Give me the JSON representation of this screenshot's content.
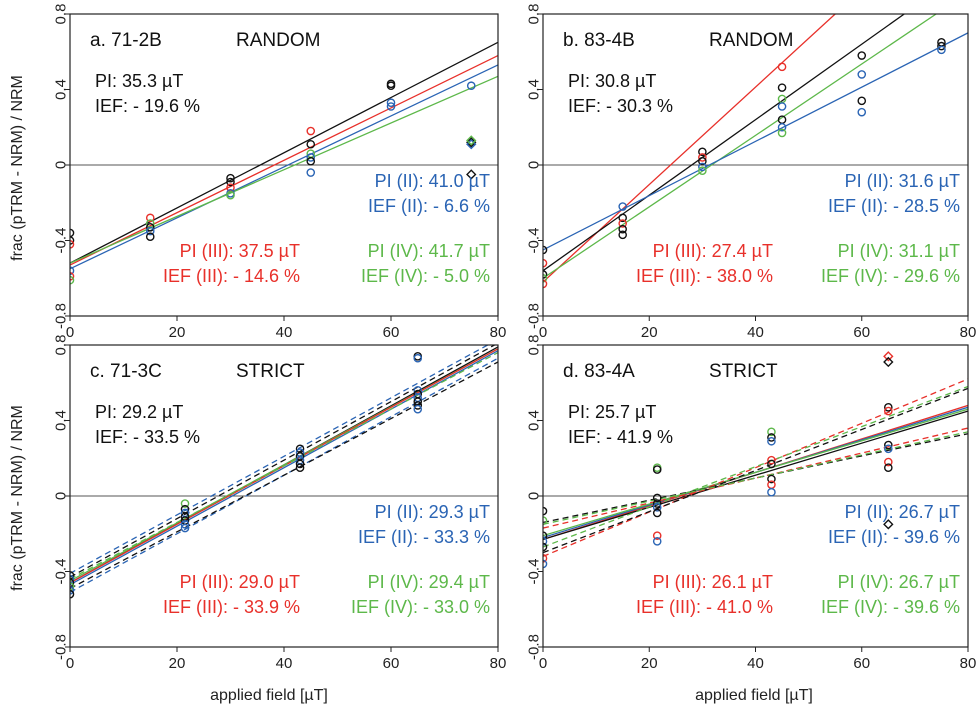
{
  "colors": {
    "black": "#111111",
    "red": "#e8302a",
    "blue": "#2a64b4",
    "green": "#5db84a",
    "zero": "#555555"
  },
  "axes": {
    "xlabel": "applied field [µT]",
    "ylabel": "frac (pTRM - NRM) / NRM",
    "xticks": [
      "0",
      "20",
      "40",
      "60",
      "80"
    ],
    "yticks": [
      "-0.8",
      "-0.4",
      "0",
      "0.4",
      "0.8"
    ]
  },
  "chart_data": [
    {
      "type": "scatter",
      "id": "a",
      "name": "a. 71-2B",
      "method": "RANDOM",
      "xlim": [
        0,
        80
      ],
      "ylim": [
        -0.8,
        0.8
      ],
      "texts": {
        "pi": "PI: 35.3 µT",
        "ief": "IEF: - 19.6 %",
        "pi2": "PI (II): 41.0 µT",
        "ief2": "IEF (II): - 6.6 %",
        "pi3": "PI (III): 37.5 µT",
        "ief3": "IEF (III): - 14.6 %",
        "pi4": "PI (IV): 41.7 µT",
        "ief4": "IEF (IV): - 5.0 %"
      },
      "lines": [
        {
          "color": "black",
          "x": [
            0,
            80
          ],
          "y": [
            -0.52,
            0.65
          ]
        },
        {
          "color": "red",
          "x": [
            0,
            80
          ],
          "y": [
            -0.53,
            0.58
          ]
        },
        {
          "color": "blue",
          "x": [
            0,
            80
          ],
          "y": [
            -0.55,
            0.53
          ]
        },
        {
          "color": "green",
          "x": [
            0,
            80
          ],
          "y": [
            -0.52,
            0.47
          ]
        }
      ],
      "points": [
        {
          "x": 0,
          "y": -0.36,
          "c": "black"
        },
        {
          "x": 0,
          "y": -0.4,
          "c": "black"
        },
        {
          "x": 0,
          "y": -0.56,
          "c": "blue"
        },
        {
          "x": 0,
          "y": -0.59,
          "c": "red"
        },
        {
          "x": 0,
          "y": -0.61,
          "c": "green"
        },
        {
          "x": 0,
          "y": -0.42,
          "c": "red"
        },
        {
          "x": 15,
          "y": -0.28,
          "c": "red"
        },
        {
          "x": 15,
          "y": -0.31,
          "c": "green"
        },
        {
          "x": 15,
          "y": -0.33,
          "c": "black"
        },
        {
          "x": 15,
          "y": -0.35,
          "c": "blue"
        },
        {
          "x": 15,
          "y": -0.38,
          "c": "black"
        },
        {
          "x": 30,
          "y": -0.07,
          "c": "black"
        },
        {
          "x": 30,
          "y": -0.09,
          "c": "black"
        },
        {
          "x": 30,
          "y": -0.12,
          "c": "red"
        },
        {
          "x": 30,
          "y": -0.15,
          "c": "blue"
        },
        {
          "x": 30,
          "y": -0.16,
          "c": "green"
        },
        {
          "x": 45,
          "y": 0.18,
          "c": "red"
        },
        {
          "x": 45,
          "y": 0.11,
          "c": "black"
        },
        {
          "x": 45,
          "y": 0.06,
          "c": "green"
        },
        {
          "x": 45,
          "y": 0.04,
          "c": "blue"
        },
        {
          "x": 45,
          "y": 0.02,
          "c": "black"
        },
        {
          "x": 45,
          "y": -0.04,
          "c": "blue"
        },
        {
          "x": 60,
          "y": 0.42,
          "c": "black"
        },
        {
          "x": 60,
          "y": 0.43,
          "c": "black"
        },
        {
          "x": 60,
          "y": 0.33,
          "c": "blue"
        },
        {
          "x": 60,
          "y": 0.31,
          "c": "blue"
        },
        {
          "x": 75,
          "y": 0.42,
          "c": "blue"
        },
        {
          "x": 75,
          "y": 0.12,
          "c": "black",
          "m": "d"
        },
        {
          "x": 75,
          "y": 0.11,
          "c": "blue",
          "m": "d"
        },
        {
          "x": 75,
          "y": 0.13,
          "c": "green",
          "m": "d"
        },
        {
          "x": 75,
          "y": -0.05,
          "c": "black",
          "m": "d"
        }
      ]
    },
    {
      "type": "scatter",
      "id": "b",
      "name": "b. 83-4B",
      "method": "RANDOM",
      "xlim": [
        0,
        80
      ],
      "ylim": [
        -0.8,
        0.8
      ],
      "texts": {
        "pi": "PI: 30.8 µT",
        "ief": "IEF: - 30.3 %",
        "pi2": "PI (II): 31.6 µT",
        "ief2": "IEF (II): - 28.5 %",
        "pi3": "PI (III): 27.4 µT",
        "ief3": "IEF (III): - 38.0 %",
        "pi4": "PI (IV): 31.1 µT",
        "ief4": "IEF (IV): - 29.6 %"
      },
      "lines": [
        {
          "color": "red",
          "x": [
            0,
            55
          ],
          "y": [
            -0.62,
            0.8
          ]
        },
        {
          "color": "black",
          "x": [
            0,
            68
          ],
          "y": [
            -0.56,
            0.8
          ]
        },
        {
          "color": "green",
          "x": [
            0,
            74
          ],
          "y": [
            -0.6,
            0.8
          ]
        },
        {
          "color": "blue",
          "x": [
            0,
            80
          ],
          "y": [
            -0.45,
            0.7
          ]
        }
      ],
      "points": [
        {
          "x": 0,
          "y": -0.45,
          "c": "black"
        },
        {
          "x": 0,
          "y": -0.52,
          "c": "red"
        },
        {
          "x": 0,
          "y": -0.58,
          "c": "black"
        },
        {
          "x": 0,
          "y": -0.6,
          "c": "green"
        },
        {
          "x": 0,
          "y": -0.63,
          "c": "red"
        },
        {
          "x": 15,
          "y": -0.22,
          "c": "blue"
        },
        {
          "x": 15,
          "y": -0.28,
          "c": "black"
        },
        {
          "x": 15,
          "y": -0.31,
          "c": "red"
        },
        {
          "x": 15,
          "y": -0.34,
          "c": "black"
        },
        {
          "x": 15,
          "y": -0.37,
          "c": "black"
        },
        {
          "x": 30,
          "y": 0.07,
          "c": "black"
        },
        {
          "x": 30,
          "y": 0.04,
          "c": "red"
        },
        {
          "x": 30,
          "y": 0.02,
          "c": "black"
        },
        {
          "x": 30,
          "y": -0.01,
          "c": "blue"
        },
        {
          "x": 30,
          "y": -0.03,
          "c": "green"
        },
        {
          "x": 45,
          "y": 0.52,
          "c": "red"
        },
        {
          "x": 45,
          "y": 0.41,
          "c": "black"
        },
        {
          "x": 45,
          "y": 0.35,
          "c": "green"
        },
        {
          "x": 45,
          "y": 0.31,
          "c": "blue"
        },
        {
          "x": 45,
          "y": 0.24,
          "c": "black"
        },
        {
          "x": 45,
          "y": 0.2,
          "c": "blue"
        },
        {
          "x": 45,
          "y": 0.17,
          "c": "green"
        },
        {
          "x": 60,
          "y": 0.58,
          "c": "black"
        },
        {
          "x": 60,
          "y": 0.48,
          "c": "blue"
        },
        {
          "x": 60,
          "y": 0.34,
          "c": "black"
        },
        {
          "x": 60,
          "y": 0.28,
          "c": "blue"
        },
        {
          "x": 75,
          "y": 0.65,
          "c": "black"
        },
        {
          "x": 75,
          "y": 0.63,
          "c": "black"
        },
        {
          "x": 75,
          "y": 0.61,
          "c": "blue"
        }
      ]
    },
    {
      "type": "scatter",
      "id": "c",
      "name": "c. 71-3C",
      "method": "STRICT",
      "xlim": [
        0,
        80
      ],
      "ylim": [
        -0.8,
        0.8
      ],
      "texts": {
        "pi": "PI: 29.2 µT",
        "ief": "IEF: - 33.5 %",
        "pi2": "PI (II): 29.3 µT",
        "ief2": "IEF (II): - 33.3 %",
        "pi3": "PI (III): 29.0 µT",
        "ief3": "IEF (III): - 33.9 %",
        "pi4": "PI (IV): 29.4 µT",
        "ief4": "IEF (IV): - 33.0 %"
      },
      "lines": [
        {
          "color": "black",
          "x": [
            0,
            80
          ],
          "y": [
            -0.46,
            0.79
          ]
        },
        {
          "color": "blue",
          "x": [
            0,
            80
          ],
          "y": [
            -0.47,
            0.77
          ]
        },
        {
          "color": "green",
          "x": [
            0,
            80
          ],
          "y": [
            -0.45,
            0.78
          ]
        },
        {
          "color": "red",
          "x": [
            0,
            80
          ],
          "y": [
            -0.46,
            0.78
          ]
        },
        {
          "color": "blue",
          "x": [
            0,
            80
          ],
          "y": [
            -0.41,
            0.83
          ],
          "dash": true
        },
        {
          "color": "black",
          "x": [
            0,
            80
          ],
          "y": [
            -0.43,
            0.81
          ],
          "dash": true
        },
        {
          "color": "blue",
          "x": [
            0,
            80
          ],
          "y": [
            -0.51,
            0.73
          ],
          "dash": true
        },
        {
          "color": "black",
          "x": [
            0,
            80
          ],
          "y": [
            -0.49,
            0.71
          ],
          "dash": true
        },
        {
          "color": "green",
          "x": [
            0,
            80
          ],
          "y": [
            -0.44,
            0.76
          ],
          "dash": true
        }
      ],
      "points": [
        {
          "x": 0,
          "y": -0.42,
          "c": "black"
        },
        {
          "x": 0,
          "y": -0.44,
          "c": "blue"
        },
        {
          "x": 0,
          "y": -0.46,
          "c": "black"
        },
        {
          "x": 0,
          "y": -0.48,
          "c": "green"
        },
        {
          "x": 0,
          "y": -0.5,
          "c": "blue"
        },
        {
          "x": 0,
          "y": -0.52,
          "c": "black"
        },
        {
          "x": 21.5,
          "y": -0.04,
          "c": "green"
        },
        {
          "x": 21.5,
          "y": -0.07,
          "c": "black"
        },
        {
          "x": 21.5,
          "y": -0.09,
          "c": "blue"
        },
        {
          "x": 21.5,
          "y": -0.11,
          "c": "black"
        },
        {
          "x": 21.5,
          "y": -0.13,
          "c": "black"
        },
        {
          "x": 21.5,
          "y": -0.15,
          "c": "blue"
        },
        {
          "x": 21.5,
          "y": -0.17,
          "c": "blue"
        },
        {
          "x": 43,
          "y": 0.25,
          "c": "black"
        },
        {
          "x": 43,
          "y": 0.23,
          "c": "blue"
        },
        {
          "x": 43,
          "y": 0.21,
          "c": "black"
        },
        {
          "x": 43,
          "y": 0.19,
          "c": "blue"
        },
        {
          "x": 43,
          "y": 0.17,
          "c": "black"
        },
        {
          "x": 43,
          "y": 0.15,
          "c": "black"
        },
        {
          "x": 65,
          "y": 0.74,
          "c": "black"
        },
        {
          "x": 65,
          "y": 0.73,
          "c": "blue"
        },
        {
          "x": 65,
          "y": 0.56,
          "c": "blue"
        },
        {
          "x": 65,
          "y": 0.54,
          "c": "black"
        },
        {
          "x": 65,
          "y": 0.52,
          "c": "blue"
        },
        {
          "x": 65,
          "y": 0.5,
          "c": "black"
        },
        {
          "x": 65,
          "y": 0.48,
          "c": "black"
        },
        {
          "x": 65,
          "y": 0.46,
          "c": "blue"
        }
      ]
    },
    {
      "type": "scatter",
      "id": "d",
      "name": "d. 83-4A",
      "method": "STRICT",
      "xlim": [
        0,
        80
      ],
      "ylim": [
        -0.8,
        0.8
      ],
      "texts": {
        "pi": "PI: 25.7 µT",
        "ief": "IEF: - 41.9 %",
        "pi2": "PI (II): 26.7 µT",
        "ief2": "IEF (II): - 39.6 %",
        "pi3": "PI (III): 26.1 µT",
        "ief3": "IEF (III): - 41.0 %",
        "pi4": "PI (IV): 26.7 µT",
        "ief4": "IEF (IV): - 39.6 %"
      },
      "lines": [
        {
          "color": "red",
          "x": [
            0,
            80
          ],
          "y": [
            -0.23,
            0.48
          ]
        },
        {
          "color": "blue",
          "x": [
            0,
            80
          ],
          "y": [
            -0.22,
            0.47
          ]
        },
        {
          "color": "green",
          "x": [
            0,
            80
          ],
          "y": [
            -0.21,
            0.46
          ]
        },
        {
          "color": "black",
          "x": [
            0,
            80
          ],
          "y": [
            -0.23,
            0.45
          ]
        },
        {
          "color": "red",
          "x": [
            0,
            80
          ],
          "y": [
            -0.32,
            0.62
          ],
          "dash": true
        },
        {
          "color": "black",
          "x": [
            0,
            80
          ],
          "y": [
            -0.3,
            0.57
          ],
          "dash": true
        },
        {
          "color": "green",
          "x": [
            0,
            80
          ],
          "y": [
            -0.27,
            0.58
          ],
          "dash": true
        },
        {
          "color": "black",
          "x": [
            0,
            80
          ],
          "y": [
            -0.14,
            0.33
          ],
          "dash": true
        },
        {
          "color": "red",
          "x": [
            0,
            80
          ],
          "y": [
            -0.17,
            0.36
          ],
          "dash": true
        },
        {
          "color": "green",
          "x": [
            0,
            80
          ],
          "y": [
            -0.15,
            0.34
          ],
          "dash": true
        }
      ],
      "points": [
        {
          "x": 0,
          "y": -0.08,
          "c": "black"
        },
        {
          "x": 0,
          "y": -0.13,
          "c": "green"
        },
        {
          "x": 0,
          "y": -0.21,
          "c": "black"
        },
        {
          "x": 0,
          "y": -0.24,
          "c": "blue"
        },
        {
          "x": 0,
          "y": -0.27,
          "c": "black"
        },
        {
          "x": 0,
          "y": -0.33,
          "c": "red"
        },
        {
          "x": 0,
          "y": -0.36,
          "c": "blue"
        },
        {
          "x": 21.5,
          "y": 0.15,
          "c": "green"
        },
        {
          "x": 21.5,
          "y": 0.14,
          "c": "black"
        },
        {
          "x": 21.5,
          "y": -0.01,
          "c": "black"
        },
        {
          "x": 21.5,
          "y": -0.04,
          "c": "black"
        },
        {
          "x": 21.5,
          "y": -0.06,
          "c": "blue"
        },
        {
          "x": 21.5,
          "y": -0.09,
          "c": "black"
        },
        {
          "x": 21.5,
          "y": -0.21,
          "c": "red"
        },
        {
          "x": 21.5,
          "y": -0.24,
          "c": "blue"
        },
        {
          "x": 43,
          "y": 0.34,
          "c": "green"
        },
        {
          "x": 43,
          "y": 0.31,
          "c": "black"
        },
        {
          "x": 43,
          "y": 0.29,
          "c": "blue"
        },
        {
          "x": 43,
          "y": 0.19,
          "c": "red"
        },
        {
          "x": 43,
          "y": 0.17,
          "c": "black"
        },
        {
          "x": 43,
          "y": 0.09,
          "c": "black"
        },
        {
          "x": 43,
          "y": 0.06,
          "c": "red"
        },
        {
          "x": 43,
          "y": 0.02,
          "c": "blue"
        },
        {
          "x": 65,
          "y": 0.74,
          "c": "red",
          "m": "d"
        },
        {
          "x": 65,
          "y": 0.71,
          "c": "black",
          "m": "d"
        },
        {
          "x": 65,
          "y": 0.47,
          "c": "black"
        },
        {
          "x": 65,
          "y": 0.45,
          "c": "red"
        },
        {
          "x": 65,
          "y": 0.27,
          "c": "black"
        },
        {
          "x": 65,
          "y": 0.25,
          "c": "blue"
        },
        {
          "x": 65,
          "y": 0.18,
          "c": "red"
        },
        {
          "x": 65,
          "y": 0.15,
          "c": "black"
        },
        {
          "x": 65,
          "y": -0.15,
          "c": "black",
          "m": "d"
        }
      ]
    }
  ]
}
